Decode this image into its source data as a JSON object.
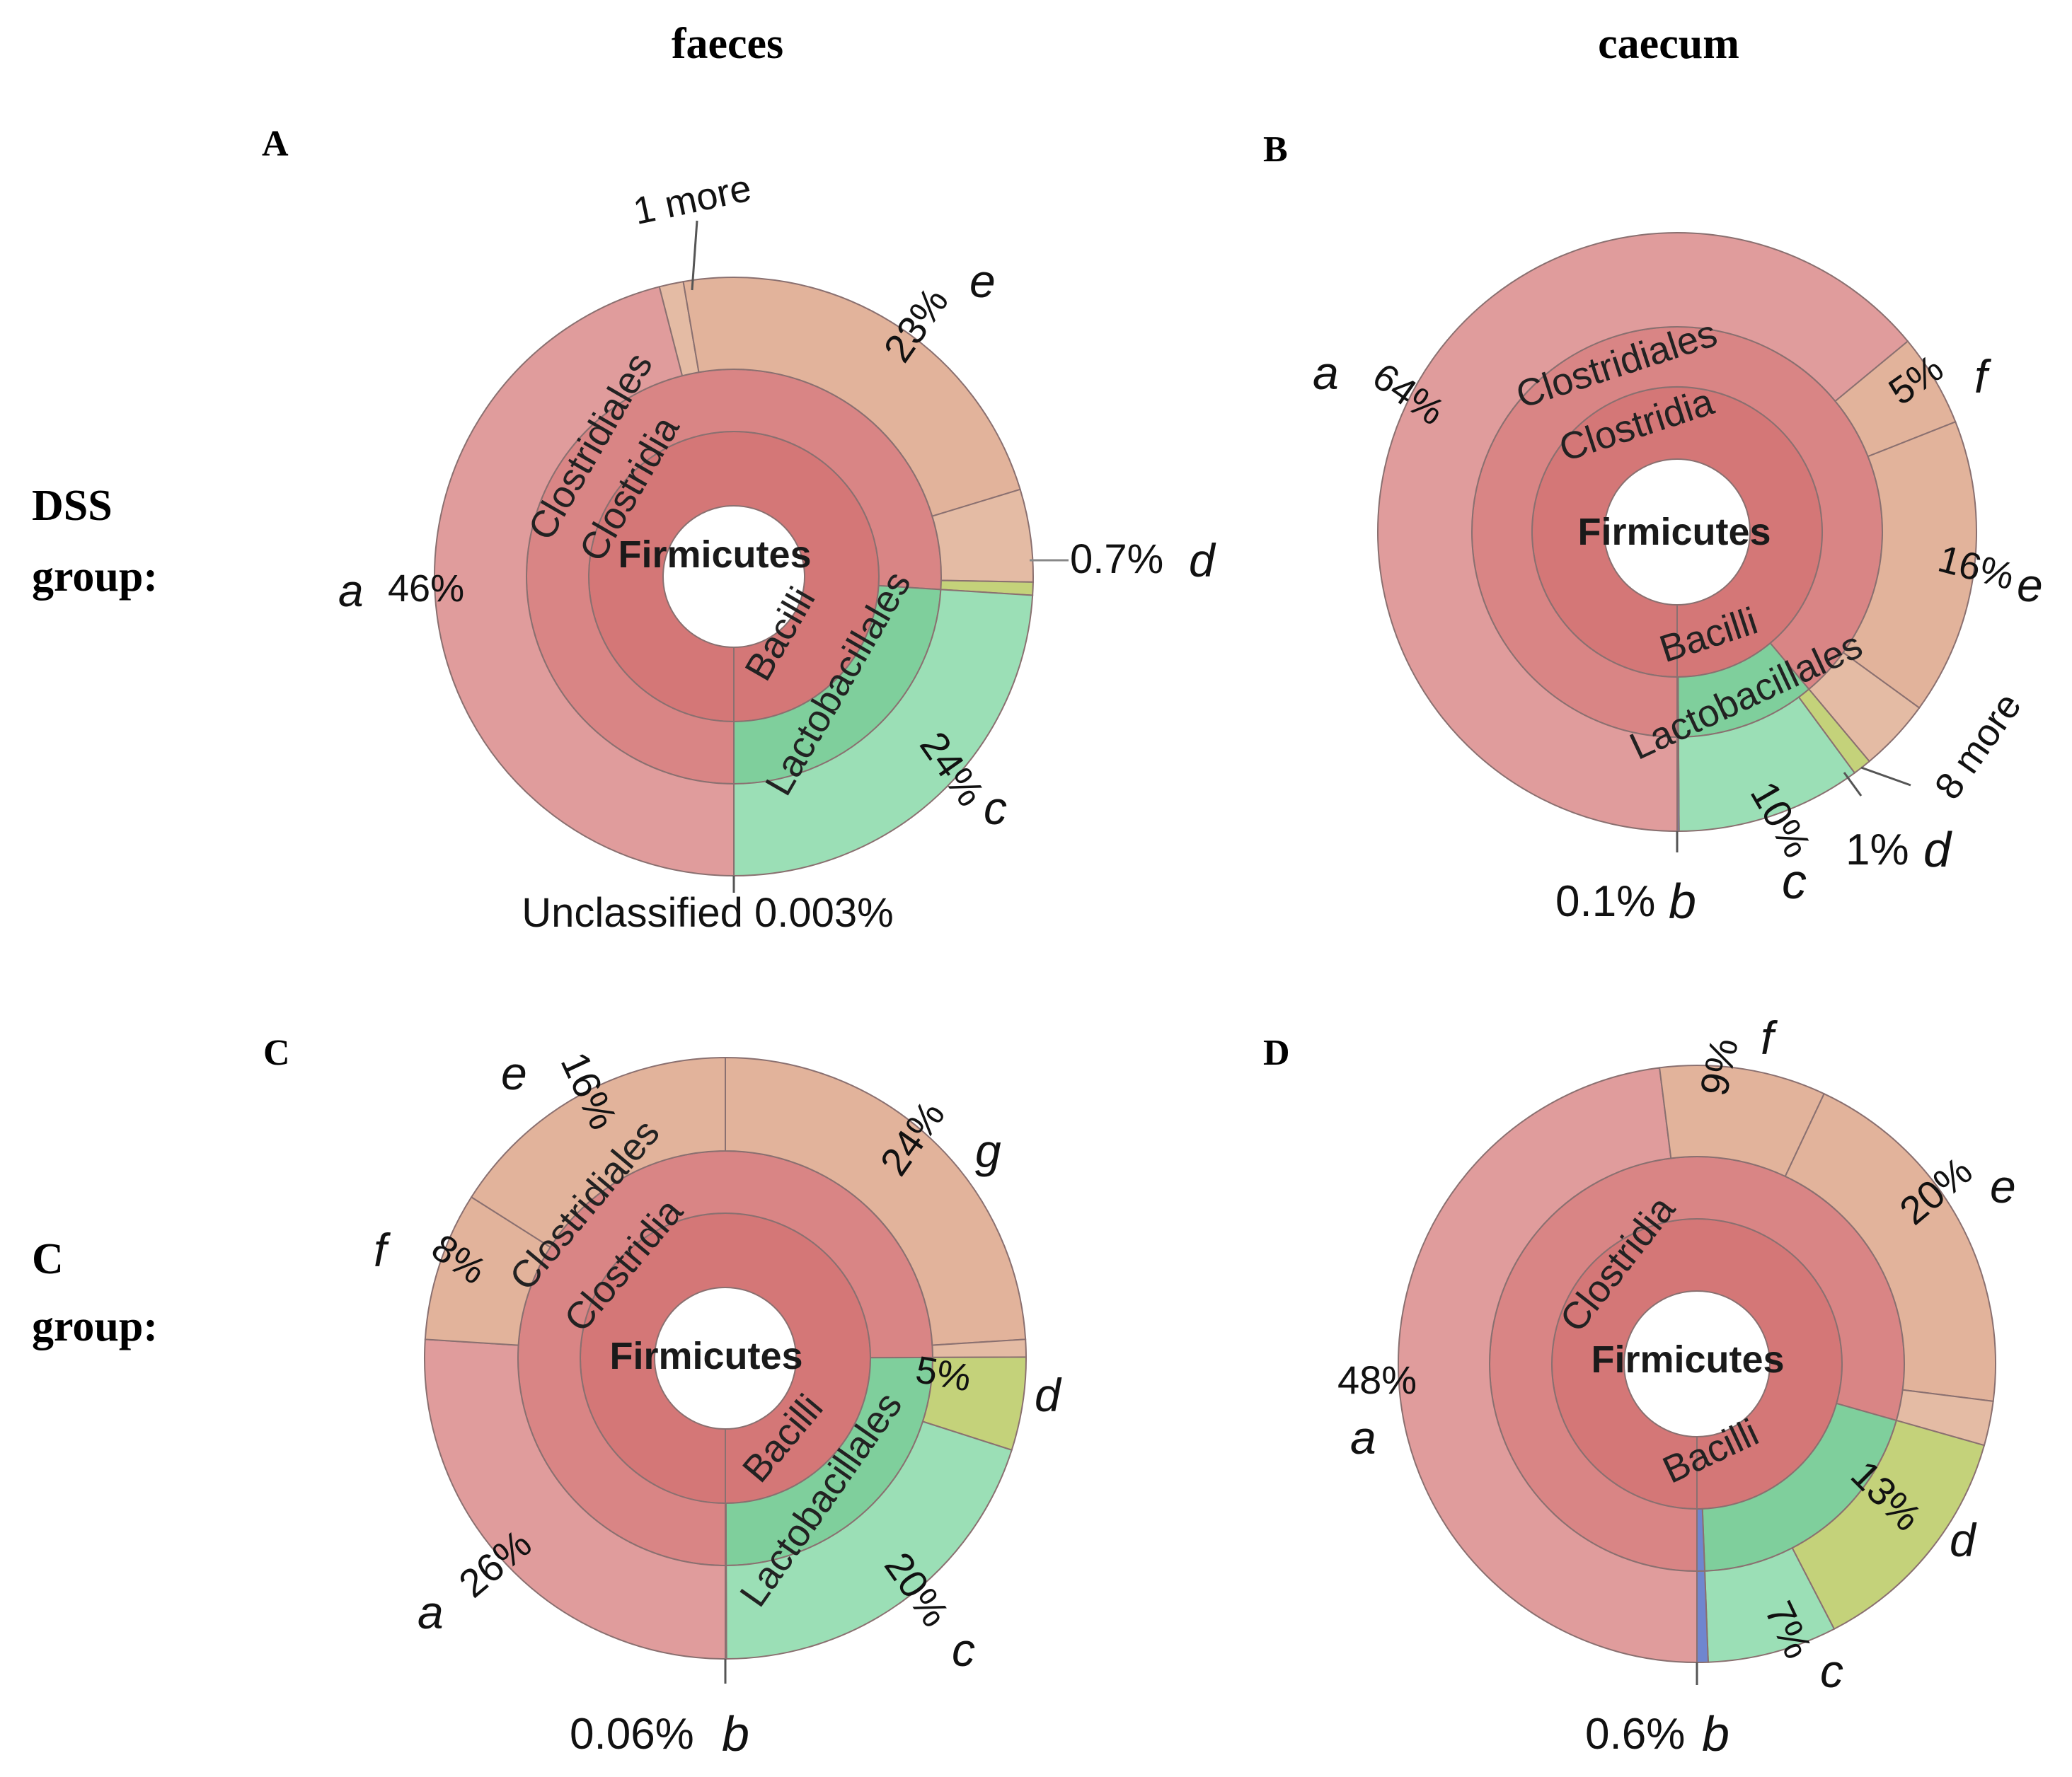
{
  "headers": {
    "col1": "faeces",
    "col2": "caecum",
    "row1_line1": "DSS",
    "row1_line2": "group:",
    "row2_line1": "C",
    "row2_line2": "group:"
  },
  "colors": {
    "root": "#d47777",
    "class_clostridia": "#d98585",
    "order_clostridiales": "#de8f8f",
    "family_red": "#e09c9c",
    "family_tan": "#e2b39b",
    "family_tan_hatch": "#e4bba4",
    "class_bacilli": "#7fcf9c",
    "order_lactobacillales": "#99dcb2",
    "family_green": "#9bdfb6",
    "yellow": "#c4d27a",
    "blue": "#6f86cf"
  },
  "chart_data": [
    {
      "panel": "A",
      "type": "sunburst",
      "root": "Firmicutes",
      "ring1": [
        {
          "name": "Clostridia",
          "value": 75.997
        },
        {
          "name": "Bacilli",
          "value": 24.0
        },
        {
          "name": "Unclassified",
          "value": 0.003
        }
      ],
      "ring2": [
        {
          "name": "Clostridiales",
          "value": 75.997
        },
        {
          "name": "Lactobacillales",
          "value": 24.0
        },
        {
          "name": "",
          "value": 0.003
        }
      ],
      "ring3": [
        {
          "label": "a",
          "value": 46.0
        },
        {
          "label": "1 more",
          "value": 1.3
        },
        {
          "label": "e",
          "value": 23.0
        },
        {
          "label": "",
          "value": 5.0
        },
        {
          "label": "d",
          "value": 0.7
        },
        {
          "label": "c",
          "value": 24.0
        },
        {
          "label": "Unclassified",
          "value": 0.003
        }
      ],
      "annotations": {
        "a": {
          "letter": "a",
          "pct": "46%"
        },
        "e": {
          "pct": "23%",
          "letter": "e"
        },
        "more": "1 more",
        "d": {
          "pct": "0.7%",
          "letter": "d"
        },
        "c": {
          "pct": "24%",
          "letter": "c"
        },
        "unclassified": "Unclassified 0.003%"
      }
    },
    {
      "panel": "B",
      "type": "sunburst",
      "root": "Firmicutes",
      "ring1": [
        {
          "name": "Clostridia",
          "value": 88.9
        },
        {
          "name": "Bacilli",
          "value": 11.0
        },
        {
          "name": "b",
          "value": 0.1
        }
      ],
      "ring2": [
        {
          "name": "Clostridiales",
          "value": 88.9
        },
        {
          "name": "Lactobacillales",
          "value": 11.0
        },
        {
          "name": "",
          "value": 0.1
        }
      ],
      "ring3": [
        {
          "label": "a",
          "value": 64.0
        },
        {
          "label": "f",
          "value": 5.0
        },
        {
          "label": "e",
          "value": 16.0
        },
        {
          "label": "8 more",
          "value": 3.9
        },
        {
          "label": "d",
          "value": 1.0
        },
        {
          "label": "c",
          "value": 10.0
        },
        {
          "label": "b",
          "value": 0.1
        }
      ],
      "annotations": {
        "a": {
          "letter": "a",
          "pct": "64%"
        },
        "f": {
          "pct": "5%",
          "letter": "f"
        },
        "e": {
          "pct": "16%",
          "letter": "e"
        },
        "more": "8 more",
        "d": {
          "pct": "1%",
          "letter": "d"
        },
        "c": {
          "pct": "10%",
          "letter": "c"
        },
        "b": {
          "pct": "0.1%",
          "letter": "b"
        }
      }
    },
    {
      "panel": "C",
      "type": "sunburst",
      "root": "Firmicutes",
      "ring1": [
        {
          "name": "Clostridia",
          "value": 74.94
        },
        {
          "name": "Bacilli",
          "value": 25.0
        },
        {
          "name": "b",
          "value": 0.06
        }
      ],
      "ring2": [
        {
          "name": "Clostridiales",
          "value": 74.94
        },
        {
          "name": "Lactobacillales",
          "value": 25.0
        },
        {
          "name": "",
          "value": 0.06
        }
      ],
      "ring3": [
        {
          "label": "a",
          "value": 26.0
        },
        {
          "label": "f",
          "value": 8.0
        },
        {
          "label": "e",
          "value": 16.0
        },
        {
          "label": "g",
          "value": 24.0
        },
        {
          "label": "",
          "value": 0.94
        },
        {
          "label": "d",
          "value": 5.0
        },
        {
          "label": "c",
          "value": 20.0
        },
        {
          "label": "b",
          "value": 0.06
        }
      ],
      "annotations": {
        "a": {
          "letter": "a",
          "pct": "26%"
        },
        "f": {
          "letter": "f",
          "pct": "8%"
        },
        "e": {
          "letter": "e",
          "pct": "16%"
        },
        "g": {
          "pct": "24%",
          "letter": "g"
        },
        "d": {
          "pct": "5%",
          "letter": "d"
        },
        "c": {
          "pct": "20%",
          "letter": "c"
        },
        "b": {
          "pct": "0.06%",
          "letter": "b"
        }
      }
    },
    {
      "panel": "D",
      "type": "sunburst",
      "root": "Firmicutes",
      "ring1": [
        {
          "name": "Clostridia",
          "value": 79.4
        },
        {
          "name": "Bacilli",
          "value": 20.0
        },
        {
          "name": "b",
          "value": 0.6
        }
      ],
      "ring2": [
        {
          "name": "",
          "value": 79.4
        },
        {
          "name": "",
          "value": 20.0
        },
        {
          "name": "",
          "value": 0.6
        }
      ],
      "ring3": [
        {
          "label": "a",
          "value": 48.0
        },
        {
          "label": "f",
          "value": 9.0
        },
        {
          "label": "e",
          "value": 20.0
        },
        {
          "label": "",
          "value": 2.4
        },
        {
          "label": "d",
          "value": 13.0
        },
        {
          "label": "c",
          "value": 7.0
        },
        {
          "label": "b",
          "value": 0.6
        }
      ],
      "annotations": {
        "a_pct": "48%",
        "a_letter": "a",
        "f": {
          "pct": "9%",
          "letter": "f"
        },
        "e": {
          "pct": "20%",
          "letter": "e"
        },
        "d": {
          "pct": "13%",
          "letter": "d"
        },
        "c": {
          "pct": "7%",
          "letter": "c"
        },
        "b": {
          "pct": "0.6%",
          "letter": "b"
        }
      }
    }
  ]
}
